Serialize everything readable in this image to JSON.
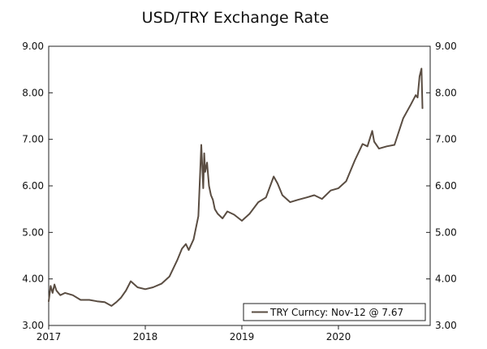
{
  "chart_data": {
    "type": "line",
    "title": "USD/TRY Exchange Rate",
    "xlabel": "",
    "ylabel": "",
    "x_ticks": [
      "2017",
      "2018",
      "2019",
      "2020"
    ],
    "x_range": [
      2017.0,
      2020.95
    ],
    "y_ticks": [
      "3.00",
      "4.00",
      "5.00",
      "6.00",
      "7.00",
      "8.00",
      "9.00"
    ],
    "ylim": [
      3.0,
      9.0
    ],
    "grid": false,
    "legend_position": "bottom-right",
    "series": [
      {
        "name": "TRY Curncy: Nov-12 @ 7.67",
        "color": "#5a4d42",
        "x": [
          2017.0,
          2017.02,
          2017.04,
          2017.06,
          2017.08,
          2017.12,
          2017.17,
          2017.25,
          2017.33,
          2017.42,
          2017.5,
          2017.58,
          2017.65,
          2017.7,
          2017.75,
          2017.8,
          2017.85,
          2017.92,
          2018.0,
          2018.08,
          2018.17,
          2018.25,
          2018.33,
          2018.38,
          2018.42,
          2018.45,
          2018.5,
          2018.55,
          2018.58,
          2018.6,
          2018.61,
          2018.62,
          2018.64,
          2018.66,
          2018.68,
          2018.7,
          2018.72,
          2018.75,
          2018.8,
          2018.85,
          2018.92,
          2019.0,
          2019.08,
          2019.17,
          2019.25,
          2019.33,
          2019.37,
          2019.42,
          2019.5,
          2019.58,
          2019.67,
          2019.75,
          2019.83,
          2019.92,
          2020.0,
          2020.08,
          2020.17,
          2020.25,
          2020.3,
          2020.35,
          2020.37,
          2020.42,
          2020.5,
          2020.58,
          2020.67,
          2020.75,
          2020.8,
          2020.82,
          2020.84,
          2020.86,
          2020.87
        ],
        "y": [
          3.52,
          3.85,
          3.7,
          3.88,
          3.75,
          3.65,
          3.7,
          3.65,
          3.55,
          3.55,
          3.52,
          3.5,
          3.42,
          3.5,
          3.6,
          3.75,
          3.95,
          3.82,
          3.78,
          3.82,
          3.9,
          4.05,
          4.4,
          4.65,
          4.75,
          4.62,
          4.85,
          5.35,
          6.88,
          5.95,
          6.7,
          6.3,
          6.5,
          6.0,
          5.8,
          5.7,
          5.5,
          5.4,
          5.3,
          5.45,
          5.38,
          5.25,
          5.4,
          5.65,
          5.75,
          6.2,
          6.05,
          5.8,
          5.65,
          5.7,
          5.75,
          5.8,
          5.72,
          5.9,
          5.95,
          6.1,
          6.55,
          6.9,
          6.85,
          7.18,
          6.95,
          6.8,
          6.85,
          6.88,
          7.45,
          7.75,
          7.95,
          7.9,
          8.35,
          8.52,
          7.67
        ]
      }
    ]
  }
}
